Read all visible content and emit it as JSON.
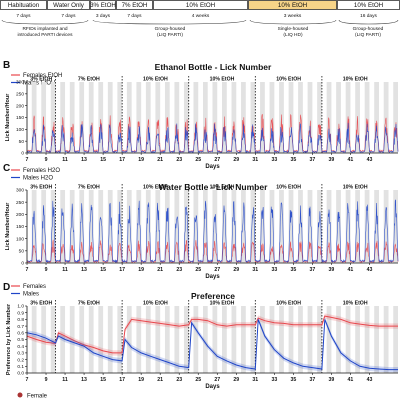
{
  "timeline": {
    "phases": [
      {
        "label": "Habituation",
        "duration": "7 days",
        "highlight": false
      },
      {
        "label": "Water Only",
        "duration": "7 days",
        "highlight": false
      },
      {
        "label": "3% EtOH",
        "duration": "3 days",
        "highlight": false
      },
      {
        "label": "7% EtOH",
        "duration": "7 days",
        "highlight": false
      },
      {
        "label": "10% EtOH",
        "duration": "4 weeks",
        "highlight": false
      },
      {
        "label": "10% EtOH",
        "duration": "3 weeks",
        "highlight": true
      },
      {
        "label": "10% EtOH",
        "duration": "16 days",
        "highlight": false
      }
    ],
    "notes": [
      {
        "lines": [
          "RFIDs implanted and",
          "introduced PARTI devices"
        ]
      },
      {
        "lines": [
          "Group-housed",
          "(LIQ PARTI)"
        ]
      },
      {
        "lines": [
          "Single-housed",
          "(LIQ HD)"
        ]
      },
      {
        "lines": [
          "Group-housed",
          "(LIQ PARTI)"
        ]
      }
    ],
    "colors": {
      "highlight": "#f7d488",
      "border": "#333333"
    }
  },
  "xaxis": {
    "label": "Days",
    "ticks": [
      "7",
      "9",
      "11",
      "13",
      "15",
      "17",
      "19",
      "21",
      "23",
      "25",
      "27",
      "29",
      "31",
      "33",
      "35",
      "37",
      "39",
      "41",
      "43"
    ],
    "range": [
      7,
      46
    ]
  },
  "boundaries": [
    10,
    17,
    24,
    31,
    38
  ],
  "phase_labels": [
    {
      "text": "3% EtOH",
      "x": 8.5
    },
    {
      "text": "7% EtOH",
      "x": 13.5
    },
    {
      "text": "10% EtOH",
      "x": 20.5
    },
    {
      "text": "10% EtOH",
      "x": 27.5
    },
    {
      "text": "10% EtOH",
      "x": 34.5
    },
    {
      "text": "10% EtOH",
      "x": 41.5
    }
  ],
  "colors": {
    "female": "#e8474d",
    "male": "#1f45c8",
    "dark": "#e2e2e2"
  },
  "chart_data": [
    {
      "panel": "B",
      "type": "line",
      "title": "Ethanol Bottle - Lick Number",
      "ylabel": "Lick Number/Hour",
      "ylim": [
        0,
        300
      ],
      "yticks": [
        "0",
        "50",
        "100",
        "150",
        "200",
        "250",
        "300"
      ],
      "x_range": [
        7,
        46
      ],
      "series": [
        {
          "name": "Females EtOH",
          "color": "#e8474d",
          "kind": "circadian",
          "x_start": 7,
          "baseline": 8,
          "peak": 120,
          "variability": 0.45
        },
        {
          "name": "Males EtOH",
          "color": "#1f45c8",
          "kind": "circadian",
          "x_start": 7,
          "baseline": 5,
          "peak": 85,
          "variability": 0.55
        }
      ]
    },
    {
      "panel": "C",
      "type": "line",
      "title": "Water Bottle - Lick Number",
      "ylabel": "Lick Number/Hour",
      "ylim": [
        0,
        300
      ],
      "yticks": [
        "0",
        "50",
        "100",
        "150",
        "200",
        "250",
        "300"
      ],
      "x_range": [
        7,
        46
      ],
      "series": [
        {
          "name": "Females H2O",
          "color": "#e8474d",
          "kind": "circadian",
          "x_start": 7,
          "baseline": 5,
          "peak": 70,
          "variability": 0.4
        },
        {
          "name": "Males H2O",
          "color": "#1f45c8",
          "kind": "circadian",
          "x_start": 7,
          "baseline": 8,
          "peak": 215,
          "variability": 0.25
        }
      ]
    },
    {
      "panel": "D",
      "type": "line",
      "title": "Preference",
      "ylabel": "Preference by Lick Number",
      "ylim": [
        0,
        1
      ],
      "yticks": [
        "0.0",
        "0.1",
        "0.2",
        "0.3",
        "0.4",
        "0.5",
        "0.6",
        "0.7",
        "0.8",
        "0.9",
        "1.0"
      ],
      "x_range": [
        7,
        46
      ],
      "series": [
        {
          "name": "Females",
          "color": "#e8474d",
          "points": [
            [
              7,
              0.55
            ],
            [
              8,
              0.5
            ],
            [
              9,
              0.46
            ],
            [
              10,
              0.44
            ],
            [
              10.3,
              0.6
            ],
            [
              11,
              0.55
            ],
            [
              12,
              0.48
            ],
            [
              13,
              0.42
            ],
            [
              14,
              0.38
            ],
            [
              15,
              0.33
            ],
            [
              16,
              0.3
            ],
            [
              17,
              0.3
            ],
            [
              17.3,
              0.65
            ],
            [
              18,
              0.8
            ],
            [
              19,
              0.78
            ],
            [
              20,
              0.76
            ],
            [
              21,
              0.74
            ],
            [
              22,
              0.72
            ],
            [
              23,
              0.7
            ],
            [
              24,
              0.72
            ],
            [
              24.3,
              0.8
            ],
            [
              25,
              0.8
            ],
            [
              26,
              0.78
            ],
            [
              27,
              0.72
            ],
            [
              28,
              0.7
            ],
            [
              29,
              0.72
            ],
            [
              30,
              0.72
            ],
            [
              31,
              0.72
            ],
            [
              31.3,
              0.82
            ],
            [
              32,
              0.78
            ],
            [
              33,
              0.75
            ],
            [
              34,
              0.74
            ],
            [
              35,
              0.72
            ],
            [
              36,
              0.72
            ],
            [
              37,
              0.72
            ],
            [
              38,
              0.72
            ],
            [
              38.3,
              0.85
            ],
            [
              39,
              0.83
            ],
            [
              40,
              0.8
            ],
            [
              41,
              0.75
            ],
            [
              42,
              0.73
            ],
            [
              43,
              0.71
            ],
            [
              44,
              0.7
            ],
            [
              45,
              0.7
            ],
            [
              46,
              0.7
            ]
          ]
        },
        {
          "name": "Males",
          "color": "#1f45c8",
          "points": [
            [
              7,
              0.6
            ],
            [
              8,
              0.57
            ],
            [
              9,
              0.52
            ],
            [
              10,
              0.45
            ],
            [
              10.3,
              0.55
            ],
            [
              11,
              0.5
            ],
            [
              12,
              0.45
            ],
            [
              13,
              0.4
            ],
            [
              14,
              0.3
            ],
            [
              15,
              0.25
            ],
            [
              16,
              0.2
            ],
            [
              17,
              0.18
            ],
            [
              17.3,
              0.5
            ],
            [
              18,
              0.38
            ],
            [
              19,
              0.3
            ],
            [
              20,
              0.25
            ],
            [
              21,
              0.2
            ],
            [
              22,
              0.15
            ],
            [
              23,
              0.1
            ],
            [
              24,
              0.08
            ],
            [
              24.3,
              0.75
            ],
            [
              25,
              0.6
            ],
            [
              26,
              0.4
            ],
            [
              27,
              0.25
            ],
            [
              28,
              0.18
            ],
            [
              29,
              0.12
            ],
            [
              30,
              0.08
            ],
            [
              31,
              0.06
            ],
            [
              31.3,
              0.8
            ],
            [
              32,
              0.55
            ],
            [
              33,
              0.35
            ],
            [
              34,
              0.22
            ],
            [
              35,
              0.15
            ],
            [
              36,
              0.1
            ],
            [
              37,
              0.08
            ],
            [
              38,
              0.06
            ],
            [
              38.3,
              0.8
            ],
            [
              39,
              0.55
            ],
            [
              40,
              0.3
            ],
            [
              41,
              0.18
            ],
            [
              42,
              0.1
            ],
            [
              43,
              0.07
            ],
            [
              44,
              0.06
            ],
            [
              45,
              0.05
            ],
            [
              46,
              0.05
            ]
          ]
        }
      ]
    }
  ],
  "panel_letters": [
    "B",
    "C",
    "D"
  ],
  "bottom_legend": {
    "label": "Female"
  }
}
